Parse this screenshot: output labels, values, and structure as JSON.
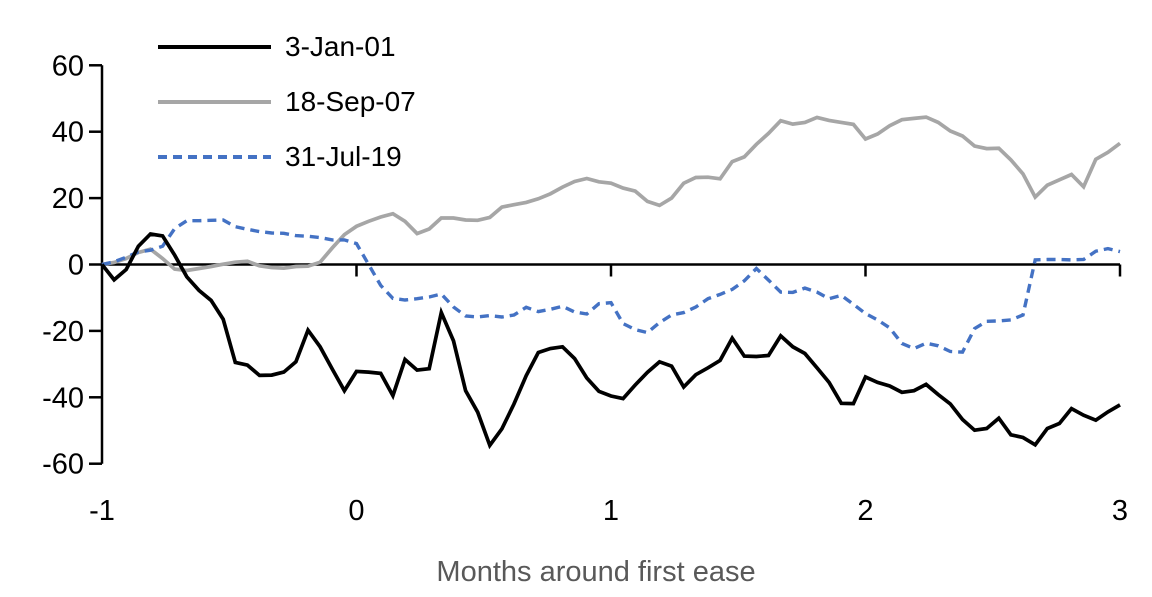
{
  "page": {
    "background": "#ffffff"
  },
  "chart_data": {
    "type": "line",
    "title": "",
    "xlabel": "Months around first ease",
    "ylabel": "",
    "x_range": [
      -1,
      3
    ],
    "ylim": [
      -60,
      60
    ],
    "x_ticks": [
      "-1",
      "0",
      "1",
      "2",
      "3"
    ],
    "y_ticks": [
      "60",
      "40",
      "20",
      "0",
      "-20",
      "-40",
      "-60"
    ],
    "grid": false,
    "legend_position": "top-left-inside",
    "axis_color": "#000000",
    "xlabel_color": "#595959",
    "x_points": 85,
    "x_spacing": "uniform",
    "series": [
      {
        "name": "3-Jan-01",
        "color": "#000000",
        "style": "solid",
        "values": [
          0,
          -4.6,
          -1.5,
          5.5,
          9.2,
          8.6,
          2.8,
          -3.7,
          -7.8,
          -10.8,
          -16.5,
          -29.5,
          -30.3,
          -33.4,
          -33.3,
          -32.4,
          -29.3,
          -19.8,
          -24.8,
          -31.5,
          -38,
          -32.2,
          -32.4,
          -32.8,
          -39.5,
          -28.6,
          -31.8,
          -31.4,
          -14.5,
          -23,
          -38,
          -44.5,
          -54.5,
          -49.5,
          -42,
          -33.5,
          -26.5,
          -25.3,
          -24.8,
          -28.3,
          -34.2,
          -38.2,
          -39.6,
          -40.4,
          -36.3,
          -32.5,
          -29.3,
          -30.6,
          -36.9,
          -33.2,
          -31.1,
          -28.9,
          -22.2,
          -27.6,
          -27.7,
          -27.4,
          -21.5,
          -24.8,
          -26.8,
          -31.1,
          -35.5,
          -41.8,
          -41.9,
          -33.9,
          -35.5,
          -36.6,
          -38.5,
          -38,
          -36.1,
          -39.2,
          -42,
          -46.7,
          -49.9,
          -49.4,
          -46.3,
          -51.3,
          -52.1,
          -54.3,
          -49.4,
          -47.9,
          -43.4,
          -45.4,
          -46.9,
          -44.4,
          -42.3
        ]
      },
      {
        "name": "18-Sep-07",
        "color": "#a6a6a6",
        "style": "solid",
        "values": [
          0,
          0.6,
          1.8,
          3.6,
          4.6,
          1.8,
          -1.4,
          -1.8,
          -1.2,
          -0.6,
          0.1,
          0.7,
          1,
          -0.4,
          -0.9,
          -1.1,
          -0.6,
          -0.5,
          0.7,
          5,
          9,
          11.5,
          13,
          14.3,
          15.3,
          13,
          9.3,
          10.7,
          14,
          14,
          13.4,
          13.3,
          14.2,
          17.3,
          18,
          18.7,
          19.8,
          21.3,
          23.3,
          25,
          25.9,
          24.9,
          24.5,
          23,
          22.1,
          19,
          17.8,
          20,
          24.5,
          26.2,
          26.3,
          25.8,
          31,
          32.4,
          36.2,
          39.5,
          43.3,
          42.3,
          42.8,
          44.3,
          43.4,
          42.8,
          42.2,
          37.8,
          39.3,
          41.8,
          43.6,
          44,
          44.4,
          42.8,
          40.2,
          38.7,
          35.7,
          34.9,
          35,
          31.5,
          27.3,
          20.3,
          23.9,
          25.5,
          27.1,
          23.4,
          31.7,
          33.8,
          36.5
        ]
      },
      {
        "name": "31-Jul-19",
        "color": "#4472c4",
        "style": "dashed",
        "values": [
          0,
          0.8,
          2.2,
          3.8,
          4.3,
          5.5,
          10.8,
          13.2,
          13.2,
          13.3,
          13.4,
          11.4,
          10.6,
          9.9,
          9.5,
          9.4,
          8.7,
          8.5,
          8.1,
          7.4,
          7.4,
          6.3,
          0,
          -6.3,
          -10.2,
          -10.7,
          -10.3,
          -9.8,
          -8.9,
          -12.8,
          -15.5,
          -15.8,
          -15.4,
          -15.8,
          -15.2,
          -12.9,
          -14.2,
          -13.5,
          -12.6,
          -14.3,
          -14.9,
          -11.8,
          -11.5,
          -17.8,
          -19.6,
          -20.5,
          -17.5,
          -15.2,
          -14.5,
          -12.8,
          -10.3,
          -9,
          -7.5,
          -4.9,
          -1.2,
          -4.7,
          -8.3,
          -8.4,
          -7.1,
          -8.3,
          -10.3,
          -9.3,
          -12,
          -14.8,
          -16.7,
          -19.1,
          -23.8,
          -25.3,
          -23.7,
          -24.5,
          -26.2,
          -26.4,
          -19.3,
          -17.1,
          -17,
          -16.7,
          -15.2,
          1.4,
          1.5,
          1.5,
          1.4,
          1.5,
          4,
          4.8,
          3.9
        ]
      }
    ]
  }
}
